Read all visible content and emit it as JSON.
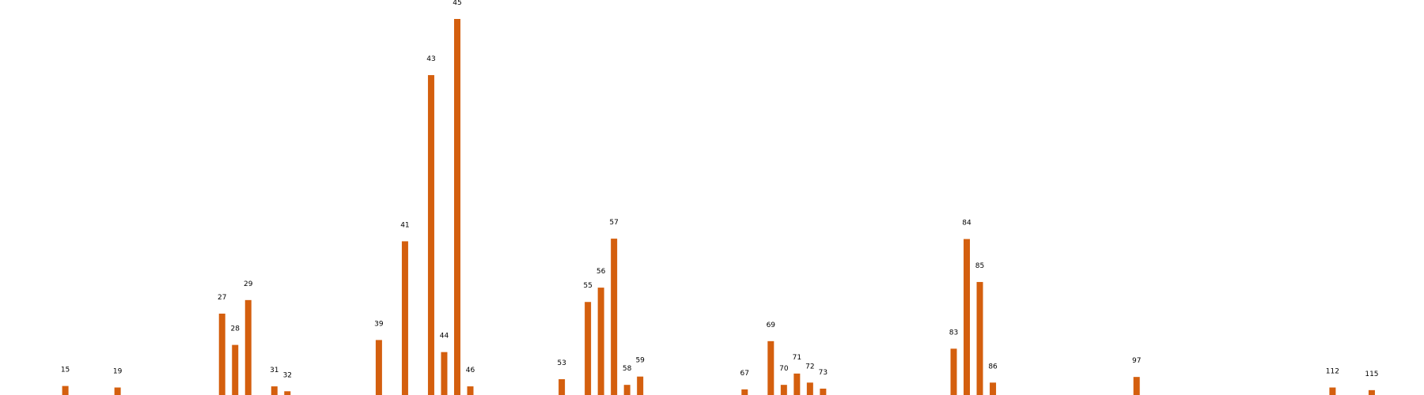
{
  "chart_data": {
    "type": "bar",
    "title": "",
    "xlabel": "",
    "ylabel": "",
    "bar_color": "#d45f0e",
    "grid": false,
    "axes_visible": false,
    "xlim": [
      10,
      119
    ],
    "ylim": [
      0,
      1.05
    ],
    "x": [
      15,
      19,
      27,
      28,
      29,
      31,
      32,
      39,
      41,
      43,
      44,
      45,
      46,
      53,
      55,
      56,
      57,
      58,
      59,
      67,
      69,
      70,
      71,
      72,
      73,
      83,
      84,
      85,
      86,
      97,
      112,
      115
    ],
    "values": [
      0.026,
      0.022,
      0.218,
      0.135,
      0.254,
      0.025,
      0.012,
      0.148,
      0.41,
      0.851,
      0.116,
      1.0,
      0.025,
      0.044,
      0.249,
      0.287,
      0.417,
      0.029,
      0.051,
      0.017,
      0.145,
      0.029,
      0.059,
      0.035,
      0.019,
      0.125,
      0.416,
      0.302,
      0.035,
      0.05,
      0.022,
      0.015
    ],
    "labels": [
      "15",
      "19",
      "27",
      "28",
      "29",
      "31",
      "32",
      "39",
      "41",
      "43",
      "44",
      "45",
      "46",
      "53",
      "55",
      "56",
      "57",
      "58",
      "59",
      "67",
      "69",
      "70",
      "71",
      "72",
      "73",
      "83",
      "84",
      "85",
      "86",
      "97",
      "112",
      "115"
    ]
  }
}
